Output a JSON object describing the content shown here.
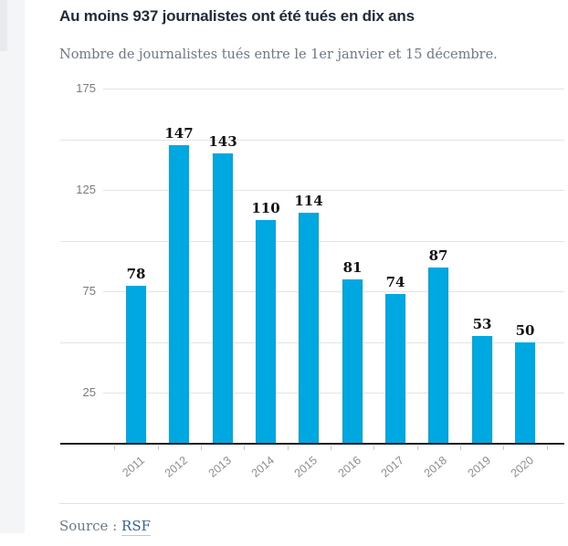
{
  "header": {
    "title": "Au moins 937 journalistes ont été tués en dix ans",
    "subtitle": "Nombre de journalistes tués entre le 1er janvier et 15 décembre."
  },
  "chart_data": {
    "type": "bar",
    "categories": [
      "2011",
      "2012",
      "2013",
      "2014",
      "2015",
      "2016",
      "2017",
      "2018",
      "2019",
      "2020"
    ],
    "values": [
      78,
      147,
      143,
      110,
      114,
      81,
      74,
      87,
      53,
      50
    ],
    "title": "Au moins 937 journalistes ont été tués en dix ans",
    "subtitle": "Nombre de journalistes tués entre le 1er janvier et 15 décembre.",
    "xlabel": "",
    "ylabel": "",
    "ylim": [
      0,
      175
    ],
    "grid": true,
    "grid_values": [
      25,
      50,
      75,
      100,
      125,
      150,
      175
    ],
    "labeled_ticks": [
      25,
      75,
      125,
      175
    ],
    "legend_position": "none",
    "bar_color": "#00a8e2",
    "value_labels_shown": true
  },
  "footer": {
    "source_label": "Source :",
    "source_link": "RSF"
  },
  "colors": {
    "bar": "#00a8e2",
    "title": "#1f2b3a",
    "subtitle": "#6b7889",
    "gridline": "#e4e4e4",
    "baseline": "#1a1a1a",
    "axis_label": "#7b7b7b",
    "category_label": "#8c8c8c",
    "source_link": "#32649b",
    "left_strip": "#f4f5f6"
  }
}
